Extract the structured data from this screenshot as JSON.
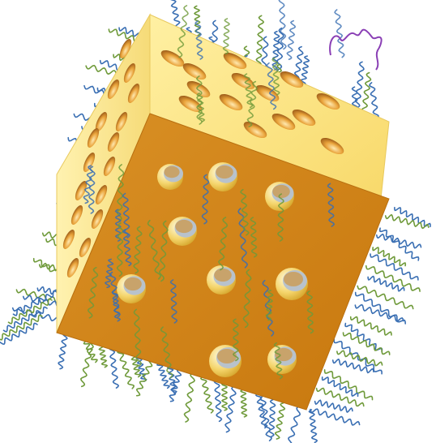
{
  "colors": {
    "front_face": "#d68a1c",
    "front_face_dark": "#c7780f",
    "top_face": "#fde47a",
    "left_face": "#fbe68c",
    "hole_rim": "#fff3b0",
    "hole_inner": "#e9c45a",
    "hole_shadow": "#b8c2cc",
    "strand_blue": "#3a6fb3",
    "strand_green": "#6f9a3a",
    "loop_purple": "#8a3fb5"
  },
  "scene": {
    "description_icon": "porous-cube-with-strands-icon"
  }
}
